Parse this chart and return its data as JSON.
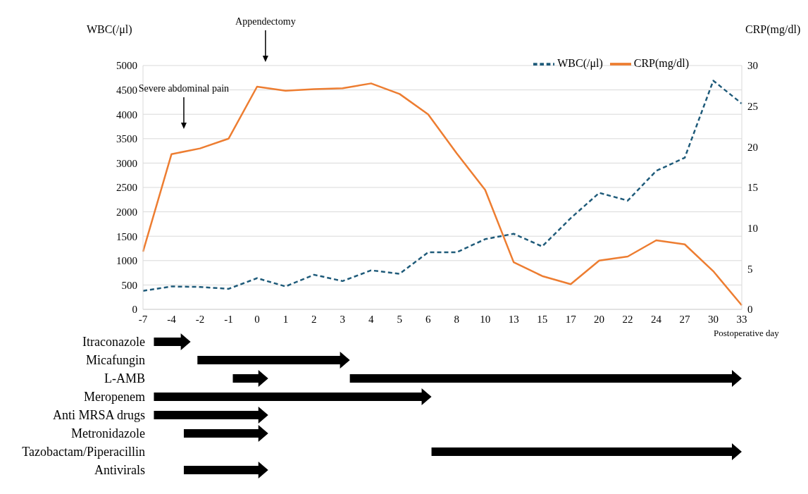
{
  "chart_data": {
    "type": "line",
    "categories": [
      "-7",
      "-4",
      "-2",
      "-1",
      "0",
      "1",
      "2",
      "3",
      "4",
      "5",
      "6",
      "8",
      "10",
      "13",
      "15",
      "17",
      "20",
      "22",
      "24",
      "27",
      "30",
      "33"
    ],
    "series": [
      {
        "name": "WBC(/μl)",
        "color": "#1f5b7a",
        "line_style": "dashed",
        "values": [
          380,
          470,
          460,
          420,
          640,
          470,
          710,
          580,
          800,
          730,
          1170,
          1170,
          1440,
          1550,
          1290,
          1870,
          2390,
          2230,
          2840,
          3110,
          4690,
          4220
        ]
      },
      {
        "name": "CRP(mg/dl)",
        "color": "#ed7d31",
        "line_style": "solid",
        "axis": "y2",
        "values": [
          7.1,
          19.1,
          19.8,
          21.0,
          27.4,
          26.9,
          27.1,
          27.2,
          27.8,
          26.5,
          24.0,
          19.2,
          14.7,
          5.8,
          4.1,
          3.1,
          6.0,
          6.5,
          8.5,
          8.0,
          4.7,
          0.5
        ]
      }
    ],
    "ylabel": "WBC(/μl)",
    "y2label": "CRP(mg/dl)",
    "xlabel": "Postoperative day",
    "ylim": [
      0,
      5000
    ],
    "yticks": [
      0,
      500,
      1000,
      1500,
      2000,
      2500,
      3000,
      3500,
      4000,
      4500,
      5000
    ],
    "y2lim": [
      0,
      30
    ],
    "y2ticks": [
      0,
      5,
      10,
      15,
      20,
      25,
      30
    ],
    "grid": "y",
    "legend": "top right",
    "marker": "none",
    "annotations": [
      "Appendectomy",
      "Severe abdominal pain",
      "Itraconazole",
      "Micafungin",
      "L-AMB",
      "Meropenem",
      "Anti MRSA drugs",
      "Metronidazole",
      "Tazobactam/Piperacillin",
      "Antivirals"
    ]
  }
}
